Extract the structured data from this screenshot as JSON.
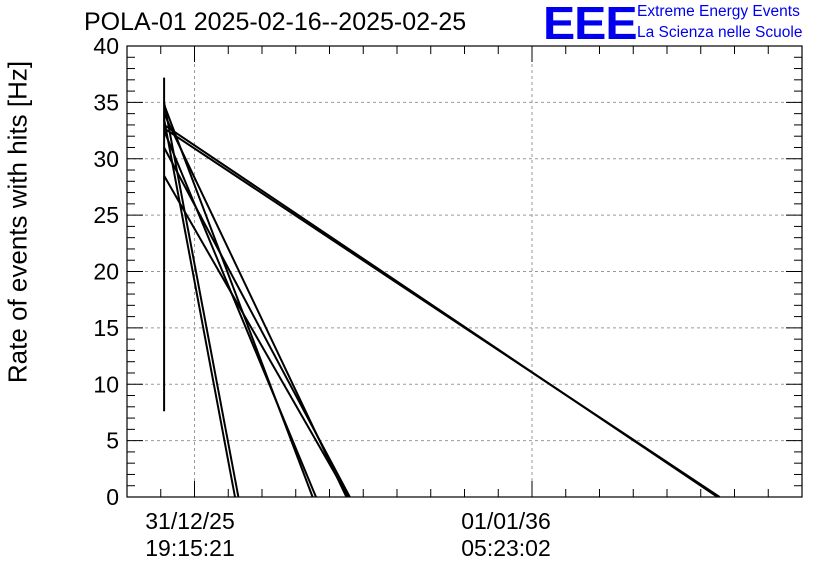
{
  "chart_data": {
    "type": "line",
    "title": "POLA-01 2025-02-16--2025-02-25",
    "ylabel": "Rate of events with hits [Hz]",
    "xlabel": "",
    "ylim": [
      0,
      40
    ],
    "yticks": [
      0,
      5,
      10,
      15,
      20,
      25,
      30,
      35,
      40
    ],
    "xtick_labels": [
      {
        "date": "31/12/25",
        "time": "19:15:21"
      },
      {
        "date": "01/01/36",
        "time": "05:23:02"
      }
    ],
    "grid": true,
    "xlim": [
      0,
      10
    ],
    "x_major_ticks": [
      1,
      6
    ],
    "series": [
      {
        "x": [
          0.55,
          0.55
        ],
        "y": [
          7.6,
          37.2
        ]
      },
      {
        "x": [
          0.55,
          1.65
        ],
        "y": [
          35.0,
          0.0
        ]
      },
      {
        "x": [
          0.55,
          1.6
        ],
        "y": [
          33.5,
          0.0
        ]
      },
      {
        "x": [
          0.55,
          2.75
        ],
        "y": [
          34.8,
          0.0
        ]
      },
      {
        "x": [
          0.55,
          2.8
        ],
        "y": [
          32.5,
          0.0
        ]
      },
      {
        "x": [
          0.55,
          3.25
        ],
        "y": [
          34.0,
          0.0
        ]
      },
      {
        "x": [
          0.55,
          3.3
        ],
        "y": [
          31.0,
          0.0
        ]
      },
      {
        "x": [
          0.55,
          3.28
        ],
        "y": [
          28.5,
          0.0
        ]
      },
      {
        "x": [
          0.55,
          8.75
        ],
        "y": [
          33.0,
          0.0
        ]
      },
      {
        "x": [
          0.55,
          8.78
        ],
        "y": [
          32.7,
          0.0
        ]
      }
    ]
  },
  "header": {
    "logo_text": "EEE",
    "brand_line1": "Extreme Energy Events",
    "brand_line2": "La Scienza nelle Scuole",
    "brand_color": "#0000ee"
  }
}
